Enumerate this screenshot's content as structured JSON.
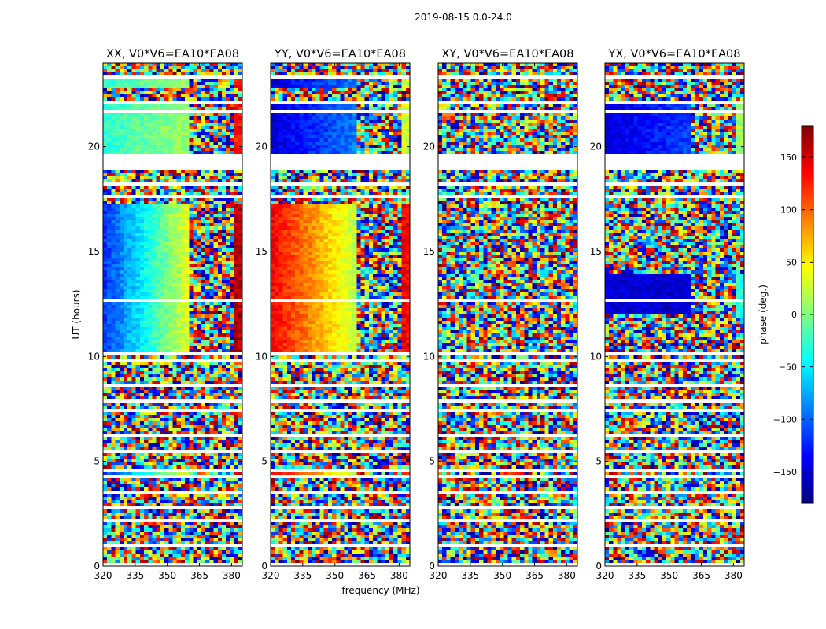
{
  "figure": {
    "suptitle": "2019-08-15 0.0-24.0",
    "xlabel": "frequency (MHz)",
    "ylabel": "UT (hours)"
  },
  "colorbar": {
    "label": "phase (deg.)",
    "range": [
      -180,
      180
    ],
    "ticks": [
      150,
      100,
      50,
      0,
      -50,
      -100,
      -150
    ],
    "tick_labels": [
      "150",
      "100",
      "50",
      "0",
      "−50",
      "−100",
      "−150"
    ],
    "colormap": [
      "#00007f",
      "#0000ff",
      "#0080ff",
      "#00ffff",
      "#80ff80",
      "#ffff00",
      "#ff8000",
      "#ff0000",
      "#7f0000"
    ]
  },
  "chart_data": {
    "type": "heatmap",
    "value_name": "phase (deg.)",
    "x_range": [
      320,
      385
    ],
    "y_range": [
      0,
      24
    ],
    "x_ticks": [
      320,
      335,
      350,
      365,
      380
    ],
    "x_tick_labels": [
      "320",
      "335",
      "350",
      "365",
      "380"
    ],
    "y_ticks": [
      0,
      5,
      10,
      15,
      20
    ],
    "y_tick_labels": [
      "0",
      "5",
      "10",
      "15",
      "20"
    ],
    "gaps_hours": [
      [
        0.05,
        0.15
      ],
      [
        0.95,
        1.05
      ],
      [
        1.45,
        1.55
      ],
      [
        2.1,
        2.3
      ],
      [
        2.75,
        2.85
      ],
      [
        3.45,
        3.55
      ],
      [
        4.15,
        4.3
      ],
      [
        4.5,
        4.6
      ],
      [
        5.45,
        5.55
      ],
      [
        6.2,
        6.3
      ],
      [
        7.4,
        7.45
      ],
      [
        7.85,
        7.9
      ],
      [
        8.6,
        8.65
      ],
      [
        9.0,
        9.05
      ],
      [
        9.4,
        9.5
      ],
      [
        9.75,
        9.9
      ],
      [
        10.1,
        10.15
      ],
      [
        12.65,
        12.7
      ],
      [
        15.0,
        15.05
      ],
      [
        16.45,
        16.5
      ],
      [
        17.2,
        17.3
      ],
      [
        17.55,
        17.75
      ],
      [
        18.15,
        18.3
      ],
      [
        18.9,
        19.1
      ],
      [
        19.1,
        19.65
      ],
      [
        20.95,
        21.05
      ],
      [
        21.55,
        21.75
      ],
      [
        22.0,
        22.25
      ],
      [
        22.75,
        22.85
      ],
      [
        23.3,
        23.45
      ]
    ],
    "panels": [
      {
        "title": "XX, V0*V6=EA10*EA08",
        "coherent_phase_deg": [
          [
            19.7,
            22.0,
            -30,
            10
          ],
          [
            22.8,
            23.3,
            -30,
            10
          ],
          [
            10.2,
            17.2,
            -120,
            40
          ],
          [
            4.3,
            4.5,
            -120,
            40
          ]
        ]
      },
      {
        "title": "YY, V0*V6=EA10*EA08",
        "coherent_phase_deg": [
          [
            19.7,
            22.0,
            -150,
            -90
          ],
          [
            22.8,
            23.3,
            -150,
            -90
          ],
          [
            10.2,
            17.2,
            140,
            20
          ],
          [
            4.3,
            4.5,
            140,
            20
          ]
        ]
      },
      {
        "title": "XY, V0*V6=EA10*EA08",
        "coherent_phase_deg": []
      },
      {
        "title": "YX, V0*V6=EA10*EA08",
        "coherent_phase_deg": [
          [
            19.7,
            22.0,
            -150,
            -110
          ],
          [
            12.0,
            14.0,
            -150,
            -150
          ]
        ]
      }
    ]
  }
}
